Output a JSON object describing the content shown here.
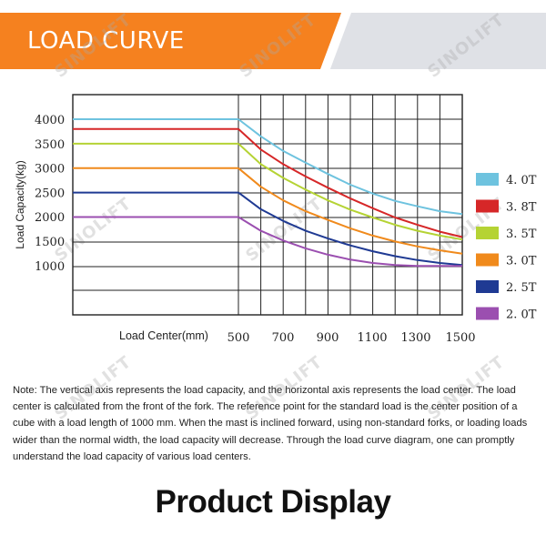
{
  "header": {
    "title": "LOAD CURVE"
  },
  "watermark": {
    "text": "SINOLIFT"
  },
  "chart_data": {
    "type": "line",
    "ylabel": "Load Capacity(kg)",
    "xlabel": "Load Center(mm)",
    "y_tick_labels": [
      "4000",
      "3500",
      "3000",
      "2500",
      "2000",
      "1500",
      "1000"
    ],
    "x_tick_labels": [
      "500",
      "700",
      "900",
      "1100",
      "1300",
      "1500"
    ],
    "xlim": [
      500,
      1500
    ],
    "ylim": [
      0,
      4000
    ],
    "grid": true,
    "legend_position": "right",
    "x": [
      500,
      600,
      700,
      800,
      900,
      1000,
      1100,
      1200,
      1300,
      1400,
      1500
    ],
    "series": [
      {
        "name": "4. 0T",
        "color": "#6ec3df",
        "values": [
          4000,
          3650,
          3350,
          3110,
          2880,
          2660,
          2480,
          2330,
          2220,
          2120,
          2060
        ]
      },
      {
        "name": "3. 8T",
        "color": "#d62728",
        "values": [
          3800,
          3380,
          3080,
          2830,
          2600,
          2380,
          2180,
          1990,
          1840,
          1700,
          1590
        ]
      },
      {
        "name": "3. 5T",
        "color": "#b5d334",
        "values": [
          3500,
          3080,
          2800,
          2560,
          2340,
          2150,
          1990,
          1840,
          1720,
          1620,
          1540
        ]
      },
      {
        "name": "3. 0T",
        "color": "#f08a1c",
        "values": [
          3000,
          2620,
          2340,
          2120,
          1940,
          1770,
          1620,
          1500,
          1400,
          1320,
          1250
        ]
      },
      {
        "name": "2. 5T",
        "color": "#1f3a93",
        "values": [
          2500,
          2160,
          1920,
          1720,
          1560,
          1420,
          1300,
          1200,
          1120,
          1060,
          1020
        ]
      },
      {
        "name": "2. 0T",
        "color": "#9b4fb0",
        "values": [
          2000,
          1720,
          1520,
          1360,
          1230,
          1130,
          1060,
          1020,
          1000,
          1000,
          1000
        ]
      }
    ]
  },
  "note": {
    "text": "Note: The vertical axis represents the load capacity, and the horizontal axis represents the load center. The load center is calculated from the front of the fork. The reference point for the standard load is the center position of a cube with a load length of 1000 mm. When the mast is inclined forward, using non-standard forks, or loading loads wider than the normal width, the load capacity will decrease. Through the load curve diagram, one can promptly understand the load capacity of various load centers."
  },
  "section": {
    "title": "Product Display"
  }
}
